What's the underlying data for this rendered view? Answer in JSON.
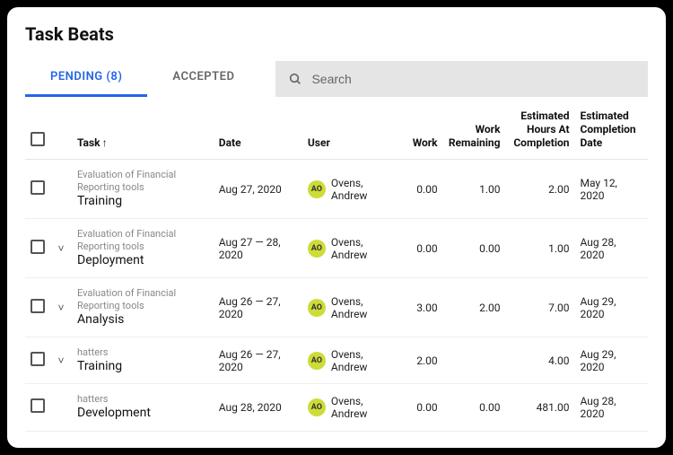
{
  "title": "Task Beats",
  "tabs": {
    "pending": {
      "label": "PENDING",
      "count": 8,
      "active": true
    },
    "accepted": {
      "label": "ACCEPTED",
      "active": false
    }
  },
  "search": {
    "placeholder": "Search",
    "value": ""
  },
  "columns": {
    "task": "Task",
    "date": "Date",
    "user": "User",
    "work": "Work",
    "work_remaining": "Work Remaining",
    "est_hours": "Estimated Hours At Completion",
    "est_date": "Estimated Completion Date"
  },
  "sort": {
    "column": "task",
    "direction": "asc",
    "arrow": "↑"
  },
  "avatar": {
    "initials": "AO",
    "bg": "#cddc39",
    "fg": "#333333"
  },
  "rows": [
    {
      "expandable": false,
      "project": "Evaluation of Financial Reporting tools",
      "name": "Training",
      "date": "Aug 27, 2020",
      "user": "Ovens, Andrew",
      "work": "0.00",
      "remaining": "1.00",
      "est_hours": "2.00",
      "est_date": "May 12, 2020"
    },
    {
      "expandable": true,
      "project": "Evaluation of Financial Reporting tools",
      "name": "Deployment",
      "date": "Aug 27 — 28, 2020",
      "user": "Ovens, Andrew",
      "work": "0.00",
      "remaining": "0.00",
      "est_hours": "1.00",
      "est_date": "Aug 28, 2020"
    },
    {
      "expandable": true,
      "project": "Evaluation of Financial Reporting tools",
      "name": "Analysis",
      "date": "Aug 26 — 27, 2020",
      "user": "Ovens, Andrew",
      "work": "3.00",
      "remaining": "2.00",
      "est_hours": "7.00",
      "est_date": "Aug 29, 2020"
    },
    {
      "expandable": true,
      "project": "hatters",
      "name": "Training",
      "date": "Aug 26 — 27, 2020",
      "user": "Ovens, Andrew",
      "work": "2.00",
      "remaining": "",
      "est_hours": "4.00",
      "est_date": "Aug 29, 2020"
    },
    {
      "expandable": false,
      "project": "hatters",
      "name": "Development",
      "date": "Aug 28, 2020",
      "user": "Ovens, Andrew",
      "work": "0.00",
      "remaining": "0.00",
      "est_hours": "481.00",
      "est_date": "Aug 28, 2020"
    }
  ],
  "colors": {
    "accent": "#2563eb",
    "border": "#e5e5e5",
    "muted_text": "#888888",
    "search_bg": "#e5e5e5"
  }
}
